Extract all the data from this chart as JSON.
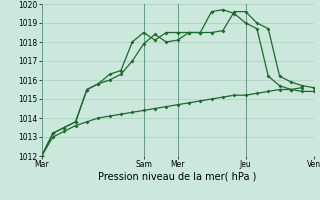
{
  "background_color": "#cce8dc",
  "grid_color": "#aaccbb",
  "line_color": "#1a6b2a",
  "xlabel": "Pression niveau de la mer( hPa )",
  "ylim": [
    1012,
    1020
  ],
  "yticks": [
    1012,
    1013,
    1014,
    1015,
    1016,
    1017,
    1018,
    1019,
    1020
  ],
  "xtick_labels": [
    "Mar",
    "Sam",
    "Mer",
    "Jeu",
    "Ven"
  ],
  "xtick_positions": [
    0,
    9,
    12,
    18,
    24
  ],
  "series1_x": [
    0,
    1,
    2,
    3,
    4,
    5,
    6,
    7,
    8,
    9,
    10,
    11,
    12,
    13,
    14,
    15,
    16,
    17,
    18,
    19,
    20,
    21,
    22,
    23,
    24
  ],
  "series1_y": [
    1012.0,
    1013.2,
    1013.5,
    1013.8,
    1015.5,
    1015.8,
    1016.0,
    1016.3,
    1017.0,
    1017.9,
    1018.4,
    1018.0,
    1018.1,
    1018.5,
    1018.5,
    1018.5,
    1018.6,
    1019.6,
    1019.6,
    1019.0,
    1018.7,
    1016.2,
    1015.9,
    1015.7,
    1015.6
  ],
  "series2_x": [
    0,
    1,
    2,
    3,
    4,
    5,
    6,
    7,
    8,
    9,
    10,
    11,
    12,
    13,
    14,
    15,
    16,
    17,
    18,
    19,
    20,
    21,
    22,
    23
  ],
  "series2_y": [
    1012.0,
    1013.2,
    1013.5,
    1013.8,
    1015.5,
    1015.8,
    1016.3,
    1016.5,
    1018.0,
    1018.5,
    1018.1,
    1018.5,
    1018.5,
    1018.5,
    1018.5,
    1019.6,
    1019.7,
    1019.5,
    1019.0,
    1018.7,
    1016.2,
    1015.7,
    1015.5,
    1015.6
  ],
  "series3_x": [
    0,
    1,
    2,
    3,
    4,
    5,
    6,
    7,
    8,
    9,
    10,
    11,
    12,
    13,
    14,
    15,
    16,
    17,
    18,
    19,
    20,
    21,
    22,
    23,
    24
  ],
  "series3_y": [
    1012.0,
    1013.0,
    1013.3,
    1013.6,
    1013.8,
    1014.0,
    1014.1,
    1014.2,
    1014.3,
    1014.4,
    1014.5,
    1014.6,
    1014.7,
    1014.8,
    1014.9,
    1015.0,
    1015.1,
    1015.2,
    1015.2,
    1015.3,
    1015.4,
    1015.5,
    1015.5,
    1015.4,
    1015.4
  ],
  "marker": "D",
  "markersize": 2.0,
  "linewidth": 0.9,
  "ylabel_fontsize": 5.5,
  "xlabel_fontsize": 7.0,
  "tick_labelsize": 5.5
}
